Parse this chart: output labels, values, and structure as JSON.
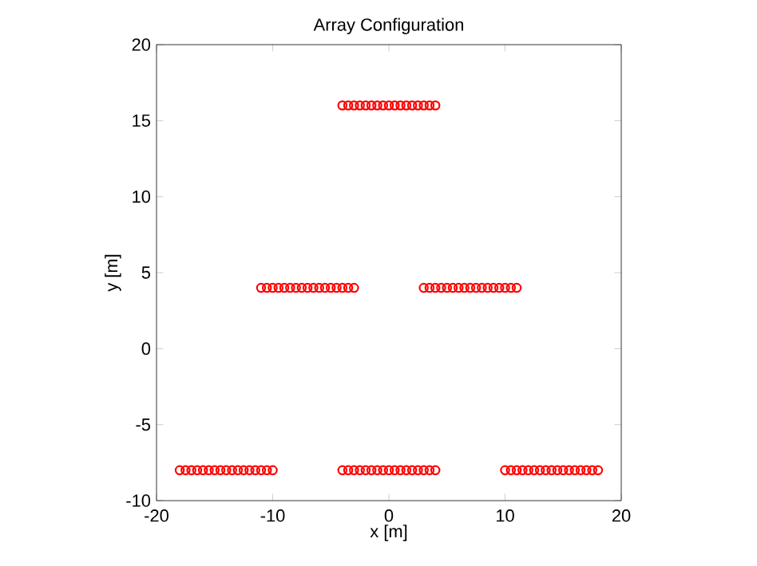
{
  "chart_data": {
    "type": "scatter",
    "title": "Array Configuration",
    "xlabel": "x [m]",
    "ylabel": "y [m]",
    "xlim": [
      -20,
      20
    ],
    "ylim": [
      -10,
      20
    ],
    "xticks": [
      -20,
      -10,
      0,
      10,
      20
    ],
    "yticks": [
      -10,
      -5,
      0,
      5,
      10,
      15,
      20
    ],
    "marker": "circle",
    "grid": false,
    "series": [
      {
        "color": "#ff0000",
        "x": [
          -4,
          -3.5,
          -3,
          -2.5,
          -2,
          -1.5,
          -1,
          -0.5,
          0,
          0.5,
          1,
          1.5,
          2,
          2.5,
          3,
          3.5,
          4,
          -11,
          -10.5,
          -10,
          -9.5,
          -9,
          -8.5,
          -8,
          -7.5,
          -7,
          -6.5,
          -6,
          -5.5,
          -5,
          -4.5,
          -4,
          -3.5,
          -3,
          3,
          3.5,
          4,
          4.5,
          5,
          5.5,
          6,
          6.5,
          7,
          7.5,
          8,
          8.5,
          9,
          9.5,
          10,
          10.5,
          11,
          -18,
          -17.5,
          -17,
          -16.5,
          -16,
          -15.5,
          -15,
          -14.5,
          -14,
          -13.5,
          -13,
          -12.5,
          -12,
          -11.5,
          -11,
          -10.5,
          -10,
          -4,
          -3.5,
          -3,
          -2.5,
          -2,
          -1.5,
          -1,
          -0.5,
          0,
          0.5,
          1,
          1.5,
          2,
          2.5,
          3,
          3.5,
          4,
          10,
          10.5,
          11,
          11.5,
          12,
          12.5,
          13,
          13.5,
          14,
          14.5,
          15,
          15.5,
          16,
          16.5,
          17,
          17.5,
          18
        ],
        "values": [
          16,
          16,
          16,
          16,
          16,
          16,
          16,
          16,
          16,
          16,
          16,
          16,
          16,
          16,
          16,
          16,
          16,
          4,
          4,
          4,
          4,
          4,
          4,
          4,
          4,
          4,
          4,
          4,
          4,
          4,
          4,
          4,
          4,
          4,
          4,
          4,
          4,
          4,
          4,
          4,
          4,
          4,
          4,
          4,
          4,
          4,
          4,
          4,
          4,
          4,
          4,
          -8,
          -8,
          -8,
          -8,
          -8,
          -8,
          -8,
          -8,
          -8,
          -8,
          -8,
          -8,
          -8,
          -8,
          -8,
          -8,
          -8,
          -8,
          -8,
          -8,
          -8,
          -8,
          -8,
          -8,
          -8,
          -8,
          -8,
          -8,
          -8,
          -8,
          -8,
          -8,
          -8,
          -8,
          -8,
          -8,
          -8,
          -8,
          -8,
          -8,
          -8,
          -8,
          -8,
          -8,
          -8,
          -8,
          -8,
          -8,
          -8,
          -8,
          -8
        ]
      }
    ]
  }
}
